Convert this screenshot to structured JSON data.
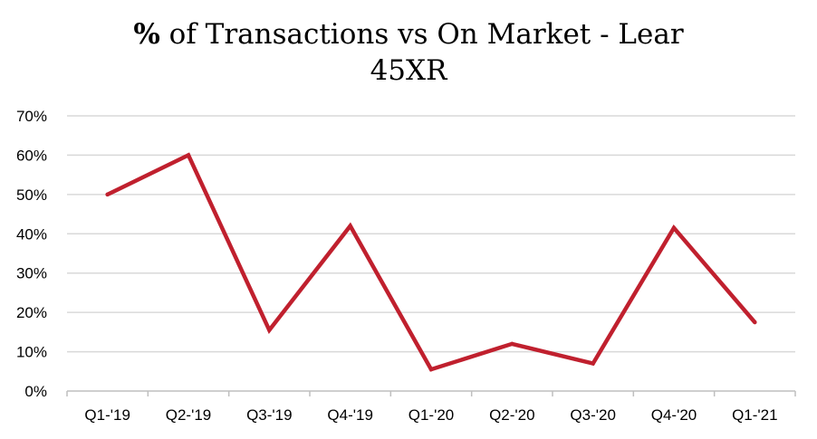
{
  "chart_data": {
    "type": "line",
    "title_line1_bold": "%",
    "title_line1_rest": " of Transactions vs On Market - Lear",
    "title_line2": "45XR",
    "xlabel": "",
    "ylabel": "",
    "categories": [
      "Q1-'19",
      "Q2-'19",
      "Q3-'19",
      "Q4-'19",
      "Q1-'20",
      "Q2-'20",
      "Q3-'20",
      "Q4-'20",
      "Q1-'21"
    ],
    "series": [
      {
        "values": [
          50,
          60,
          15.5,
          42,
          5.5,
          12,
          7,
          41.5,
          17.5
        ],
        "color": "#c0202e"
      }
    ],
    "ylim": [
      0,
      70
    ],
    "yticks": [
      0,
      10,
      20,
      30,
      40,
      50,
      60,
      70
    ],
    "ytick_labels": [
      "0%",
      "10%",
      "20%",
      "30%",
      "40%",
      "50%",
      "60%",
      "70%"
    ],
    "grid": true,
    "grid_color": "#d9d9d9",
    "legend": "none"
  }
}
